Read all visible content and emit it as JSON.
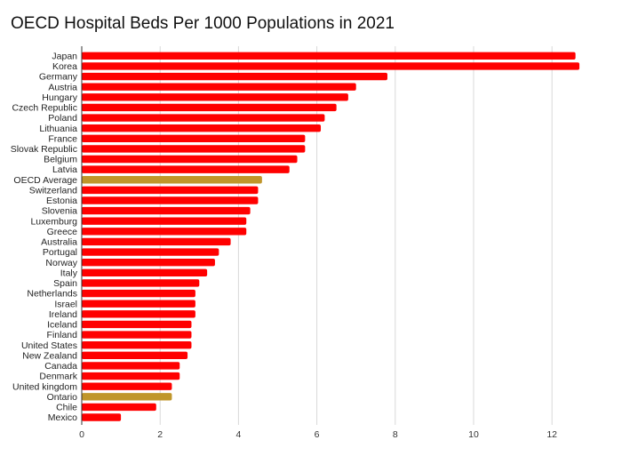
{
  "chart_data": {
    "type": "bar",
    "orientation": "horizontal",
    "title": "OECD Hospital Beds Per 1000 Populations in 2021",
    "xlabel": "",
    "ylabel": "",
    "xlim": [
      0,
      14
    ],
    "xticks": [
      0,
      2,
      4,
      6,
      8,
      10,
      12
    ],
    "grid": true,
    "colors": {
      "default": "#ff0000",
      "highlight": "#c0962a"
    },
    "categories": [
      "Japan",
      "Korea",
      "Germany",
      "Austria",
      "Hungary",
      "Czech Republic",
      "Poland",
      "Lithuania",
      "France",
      "Slovak Republic",
      "Belgium",
      "Latvia",
      "OECD Average",
      "Switzerland",
      "Estonia",
      "Slovenia",
      "Luxemburg",
      "Greece",
      "Australia",
      "Portugal",
      "Norway",
      "Italy",
      "Spain",
      "Netherlands",
      "Israel",
      "Ireland",
      "Iceland",
      "Finland",
      "United States",
      "New Zealand",
      "Canada",
      "Denmark",
      "United kingdom",
      "Ontario",
      "Chile",
      "Mexico"
    ],
    "values": [
      12.6,
      12.7,
      7.8,
      7.0,
      6.8,
      6.5,
      6.2,
      6.1,
      5.7,
      5.7,
      5.5,
      5.3,
      4.6,
      4.5,
      4.5,
      4.3,
      4.2,
      4.2,
      3.8,
      3.5,
      3.4,
      3.2,
      3.0,
      2.9,
      2.9,
      2.9,
      2.8,
      2.8,
      2.8,
      2.7,
      2.5,
      2.5,
      2.3,
      2.3,
      1.9,
      1.0
    ],
    "highlighted": [
      "OECD Average",
      "Ontario"
    ]
  }
}
